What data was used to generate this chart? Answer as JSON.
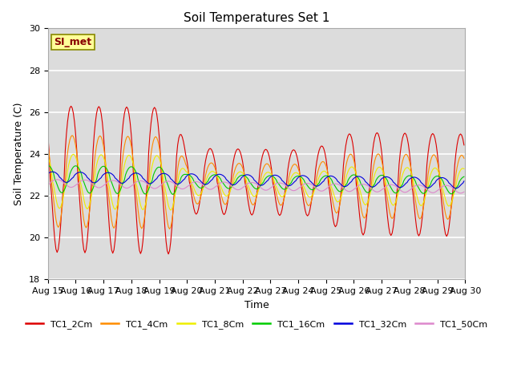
{
  "title": "Soil Temperatures Set 1",
  "xlabel": "Time",
  "ylabel": "Soil Temperature (C)",
  "ylim": [
    18,
    30
  ],
  "xlim_days": [
    0,
    15
  ],
  "annotation": "SI_met",
  "background_color": "#dcdcdc",
  "series": [
    {
      "label": "TC1_2Cm",
      "color": "#dd0000",
      "base_amp": 3.5,
      "phase_hr": 14,
      "mean": 22.5
    },
    {
      "label": "TC1_4Cm",
      "color": "#ff8c00",
      "base_amp": 2.2,
      "phase_hr": 15,
      "mean": 22.4
    },
    {
      "label": "TC1_8Cm",
      "color": "#eeee00",
      "base_amp": 1.3,
      "phase_hr": 16,
      "mean": 22.4
    },
    {
      "label": "TC1_16Cm",
      "color": "#00cc00",
      "base_amp": 0.65,
      "phase_hr": 18,
      "mean": 22.5
    },
    {
      "label": "TC1_32Cm",
      "color": "#0000dd",
      "base_amp": 0.25,
      "phase_hr": 22,
      "mean": 22.6
    },
    {
      "label": "TC1_50Cm",
      "color": "#dd88cc",
      "base_amp": 0.18,
      "phase_hr": 26,
      "mean": 22.3
    }
  ],
  "tick_labels": [
    "Aug 15",
    "Aug 16",
    "Aug 17",
    "Aug 18",
    "Aug 19",
    "Aug 20",
    "Aug 21",
    "Aug 22",
    "Aug 23",
    "Aug 24",
    "Aug 25",
    "Aug 26",
    "Aug 27",
    "Aug 28",
    "Aug 29",
    "Aug 30"
  ],
  "tick_positions": [
    0,
    1,
    2,
    3,
    4,
    5,
    6,
    7,
    8,
    9,
    10,
    11,
    12,
    13,
    14,
    15
  ],
  "yticks": [
    18,
    20,
    22,
    24,
    26,
    28,
    30
  ]
}
